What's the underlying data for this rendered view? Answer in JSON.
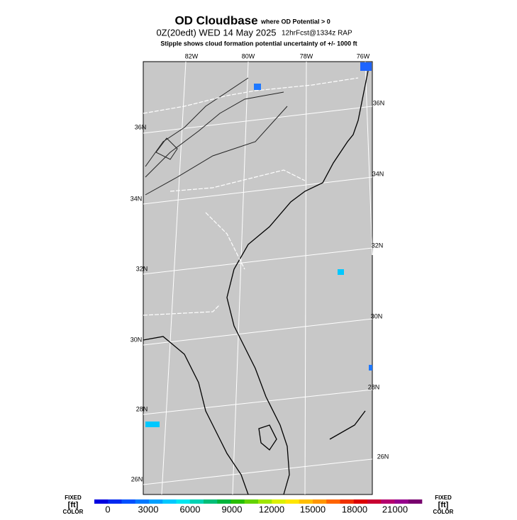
{
  "title": "OD Cloudbase",
  "title_note": "where OD Potential > 0",
  "subtitle": "0Z(20edt) WED 14 May 2025",
  "model": "12hrFcst@1334z RAP",
  "note": "Stipple shows cloud formation potential uncertainty of +/-  1000 ft",
  "map": {
    "lon_labels": [
      "82W",
      "80W",
      "78W",
      "76W"
    ],
    "lat_labels_left": [
      "36N",
      "34N",
      "32N",
      "30N",
      "28N",
      "26N"
    ],
    "lat_labels_right": [
      "36N",
      "34N",
      "32N",
      "30N",
      "28N",
      "26N"
    ]
  },
  "colorbar": {
    "left": [
      "FIXED",
      "[ft]",
      "COLOR"
    ],
    "right": [
      "FIXED",
      "[ft]",
      "COLOR"
    ],
    "labels": [
      0,
      3000,
      6000,
      9000,
      12000,
      15000,
      18000,
      21000
    ],
    "colors": [
      "#0000e0",
      "#0028f0",
      "#0050ff",
      "#0078ff",
      "#00a0ff",
      "#00c8ff",
      "#00e6f0",
      "#00d2b4",
      "#00be78",
      "#00b43c",
      "#28be00",
      "#64d200",
      "#a0e600",
      "#dcf000",
      "#ffe600",
      "#ffbe00",
      "#ff9600",
      "#ff6400",
      "#f03200",
      "#dc0000",
      "#c80032",
      "#b4006e",
      "#96008c",
      "#78006e"
    ]
  }
}
